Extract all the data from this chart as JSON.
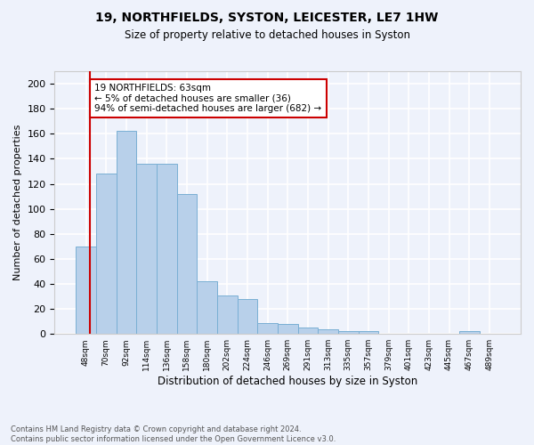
{
  "title1": "19, NORTHFIELDS, SYSTON, LEICESTER, LE7 1HW",
  "title2": "Size of property relative to detached houses in Syston",
  "xlabel": "Distribution of detached houses by size in Syston",
  "ylabel": "Number of detached properties",
  "categories": [
    "48sqm",
    "70sqm",
    "92sqm",
    "114sqm",
    "136sqm",
    "158sqm",
    "180sqm",
    "202sqm",
    "224sqm",
    "246sqm",
    "269sqm",
    "291sqm",
    "313sqm",
    "335sqm",
    "357sqm",
    "379sqm",
    "401sqm",
    "423sqm",
    "445sqm",
    "467sqm",
    "489sqm"
  ],
  "values": [
    70,
    128,
    162,
    136,
    136,
    112,
    42,
    31,
    28,
    9,
    8,
    5,
    4,
    2,
    2,
    0,
    0,
    0,
    0,
    2,
    0
  ],
  "bar_color": "#b8d0ea",
  "bar_edge_color": "#7aafd4",
  "annotation_text": "19 NORTHFIELDS: 63sqm\n← 5% of detached houses are smaller (36)\n94% of semi-detached houses are larger (682) →",
  "annotation_box_color": "#ffffff",
  "annotation_box_edge": "#cc0000",
  "vline_color": "#cc0000",
  "ylim": [
    0,
    210
  ],
  "yticks": [
    0,
    20,
    40,
    60,
    80,
    100,
    120,
    140,
    160,
    180,
    200
  ],
  "footnote": "Contains HM Land Registry data © Crown copyright and database right 2024.\nContains public sector information licensed under the Open Government Licence v3.0.",
  "bg_color": "#eef2fb",
  "grid_color": "#ffffff"
}
